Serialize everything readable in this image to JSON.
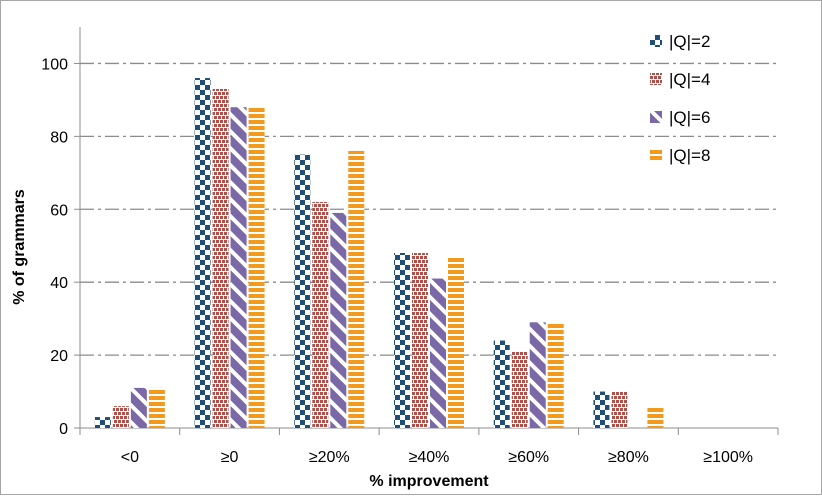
{
  "chart_data": {
    "type": "bar",
    "title": "",
    "xlabel": "% improvement",
    "ylabel": "% of grammars",
    "ylim": [
      0,
      110
    ],
    "yticks": [
      0,
      20,
      40,
      60,
      80,
      100
    ],
    "ytick_labels": [
      "0",
      "20",
      "40",
      "60",
      "80",
      "100"
    ],
    "grid": true,
    "legend_position": "top-right",
    "categories": [
      "<0",
      "≥0",
      "≥20%",
      "≥40%",
      "≥60%",
      "≥80%",
      "≥100%"
    ],
    "series": [
      {
        "name": "|Q|=2",
        "color": "#1f4e79",
        "values": [
          3,
          96,
          75,
          48,
          24,
          10,
          0
        ]
      },
      {
        "name": "|Q|=4",
        "color": "#b0504a",
        "values": [
          6,
          93,
          62,
          48,
          21,
          10,
          0
        ]
      },
      {
        "name": "|Q|=6",
        "color": "#7b68a6",
        "values": [
          11,
          88,
          59,
          41,
          29,
          0,
          0
        ]
      },
      {
        "name": "|Q|=8",
        "color": "#f39a1c",
        "values": [
          11,
          88,
          76,
          47,
          29,
          6,
          0
        ]
      }
    ]
  }
}
